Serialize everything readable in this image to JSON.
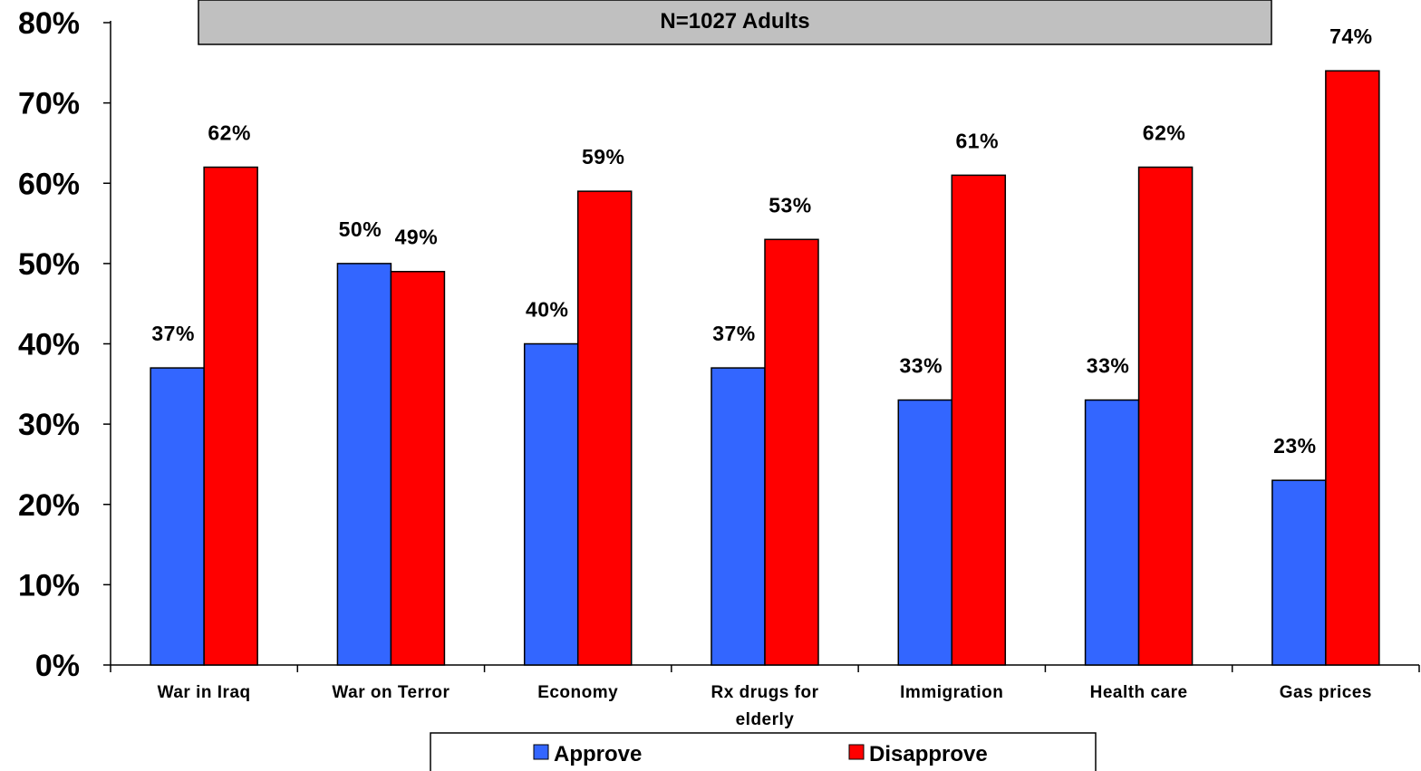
{
  "chart_data": {
    "type": "bar",
    "title": "",
    "subtitle": "N=1027 Adults",
    "xlabel": "",
    "ylabel": "",
    "ylim": [
      0,
      80
    ],
    "y_ticks": [
      "0%",
      "10%",
      "20%",
      "30%",
      "40%",
      "50%",
      "60%",
      "70%",
      "80%"
    ],
    "y_tick_values": [
      0,
      10,
      20,
      30,
      40,
      50,
      60,
      70,
      80
    ],
    "grid": false,
    "legend_position": "bottom",
    "categories": [
      [
        "War in Iraq"
      ],
      [
        "War on Terror"
      ],
      [
        "Economy"
      ],
      [
        "Rx drugs for",
        "elderly"
      ],
      [
        "Immigration"
      ],
      [
        "Health care"
      ],
      [
        "Gas prices"
      ]
    ],
    "series": [
      {
        "name": "Approve",
        "color": "#3366ff",
        "values": [
          37,
          50,
          40,
          37,
          33,
          33,
          23
        ],
        "labels": [
          "37%",
          "50%",
          "40%",
          "37%",
          "33%",
          "33%",
          "23%"
        ]
      },
      {
        "name": "Disapprove",
        "color": "#ff0000",
        "values": [
          62,
          49,
          59,
          53,
          61,
          62,
          74
        ],
        "labels": [
          "62%",
          "49%",
          "59%",
          "53%",
          "61%",
          "62%",
          "74%"
        ]
      }
    ]
  }
}
